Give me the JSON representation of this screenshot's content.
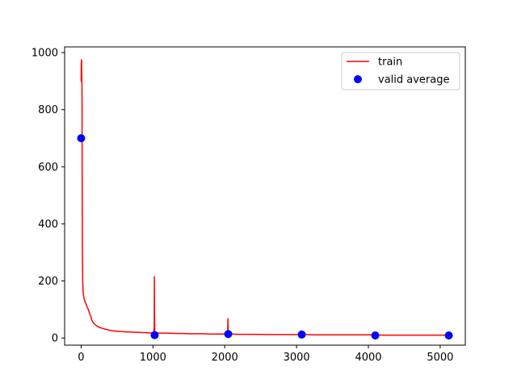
{
  "chart_data": {
    "type": "line",
    "title": "",
    "xlabel": "",
    "ylabel": "",
    "xlim": [
      -230,
      5350
    ],
    "ylim": [
      -25,
      1020
    ],
    "xticks": [
      0,
      1000,
      2000,
      3000,
      4000,
      5000
    ],
    "yticks": [
      0,
      200,
      400,
      600,
      800,
      1000
    ],
    "xtick_labels": [
      "0",
      "1000",
      "2000",
      "3000",
      "4000",
      "5000"
    ],
    "ytick_labels": [
      "0",
      "200",
      "400",
      "600",
      "800",
      "1000"
    ],
    "grid": false,
    "legend_position": "top-right",
    "series": [
      {
        "name": "train",
        "kind": "line",
        "color": "#ff0000",
        "x": [
          0,
          2,
          4,
          6,
          8,
          10,
          12,
          14,
          16,
          18,
          20,
          22,
          24,
          26,
          28,
          30,
          33,
          36,
          40,
          45,
          50,
          60,
          70,
          80,
          90,
          100,
          110,
          120,
          130,
          140,
          150,
          165,
          180,
          200,
          220,
          250,
          280,
          310,
          350,
          400,
          450,
          500,
          550,
          600,
          650,
          700,
          750,
          800,
          850,
          900,
          950,
          1000,
          1010,
          1018,
          1020,
          1022,
          1025,
          1030,
          1040,
          1100,
          1200,
          1300,
          1400,
          1500,
          1600,
          1700,
          1800,
          1900,
          2000,
          2040,
          2045,
          2048,
          2050,
          2055,
          2060,
          2100,
          2200,
          2400,
          2600,
          2800,
          3000,
          3060,
          3068,
          3072,
          3076,
          3085,
          3100,
          3300,
          3500,
          3800,
          4000,
          4080,
          4092,
          4096,
          4100,
          4110,
          4200,
          4400,
          4600,
          4800,
          5000,
          5100,
          5120
        ],
        "y": [
          900,
          960,
          975,
          970,
          940,
          900,
          880,
          600,
          420,
          300,
          240,
          200,
          185,
          170,
          160,
          155,
          150,
          145,
          140,
          135,
          130,
          125,
          118,
          110,
          105,
          100,
          92,
          85,
          78,
          70,
          62,
          55,
          50,
          46,
          42,
          38,
          35,
          33,
          30,
          27,
          25,
          24,
          23,
          22,
          21,
          21,
          20,
          20,
          19,
          19,
          18,
          18,
          18,
          40,
          215,
          80,
          25,
          19,
          18,
          17,
          17,
          16,
          16,
          15,
          15,
          15,
          14,
          14,
          14,
          14,
          68,
          30,
          15,
          14,
          14,
          14,
          13,
          13,
          12,
          12,
          12,
          12,
          25,
          18,
          12,
          12,
          12,
          11,
          11,
          11,
          11,
          11,
          14,
          12,
          11,
          11,
          10,
          10,
          10,
          10,
          10,
          10,
          10
        ]
      },
      {
        "name": "valid average",
        "kind": "scatter",
        "color": "#0000ff",
        "x": [
          0,
          1024,
          2048,
          3072,
          4096,
          5120
        ],
        "y": [
          700,
          10,
          14,
          12,
          9,
          9
        ]
      }
    ]
  }
}
